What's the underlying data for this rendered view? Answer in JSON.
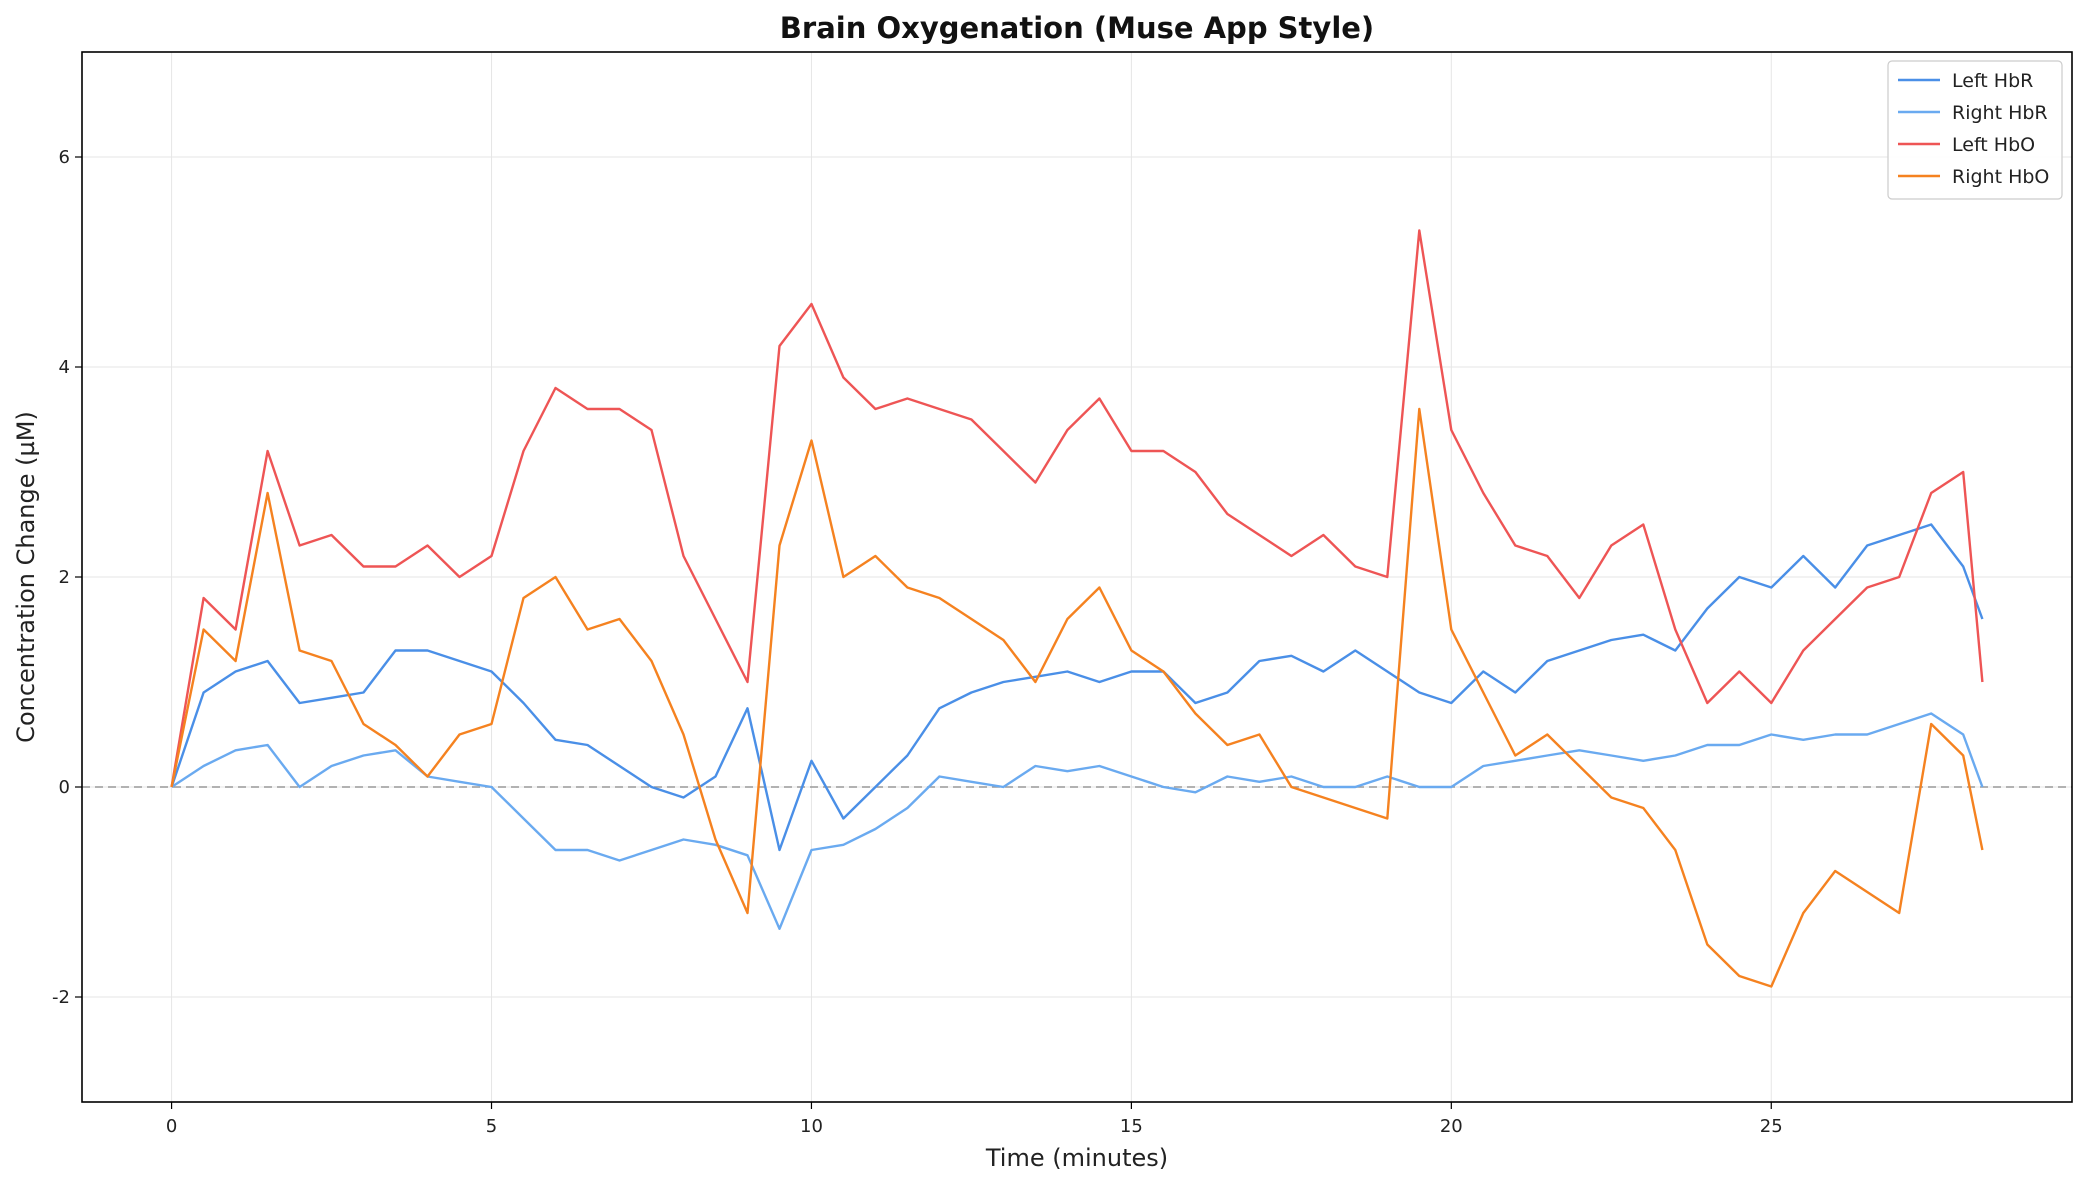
{
  "chart_data": {
    "type": "line",
    "title": "Brain Oxygenation (Muse App Style)",
    "xlabel": "Time (minutes)",
    "ylabel": "Concentration Change (µM)",
    "xlim": [
      -1.4,
      29.7
    ],
    "ylim": [
      -3.0,
      7.0
    ],
    "xticks": [
      0,
      5,
      10,
      15,
      20,
      25
    ],
    "xtick_labels": [
      "0",
      "5",
      "10",
      "15",
      "20",
      "25"
    ],
    "yticks": [
      -2,
      0,
      2,
      4,
      6
    ],
    "ytick_labels": [
      "-2",
      "0",
      "2",
      "4",
      "6"
    ],
    "grid": true,
    "reference_line_y": 0,
    "legend_position": "top-right",
    "series": [
      {
        "name": "Left HbR",
        "color": "#4a8fe7",
        "x": [
          0,
          0.5,
          1,
          1.5,
          2,
          2.5,
          3,
          3.5,
          4,
          4.5,
          5,
          5.5,
          6,
          6.5,
          7,
          7.5,
          8,
          8.5,
          9,
          9.5,
          10,
          10.5,
          11,
          11.5,
          12,
          12.5,
          13,
          13.5,
          14,
          14.5,
          15,
          15.5,
          16,
          16.5,
          17,
          17.5,
          18,
          18.5,
          19,
          19.5,
          20,
          20.5,
          21,
          21.5,
          22,
          22.5,
          23,
          23.5,
          24,
          24.5,
          25,
          25.5,
          26,
          26.5,
          27,
          27.5,
          28,
          28.3
        ],
        "y": [
          0.0,
          0.9,
          1.1,
          1.2,
          0.8,
          0.85,
          0.9,
          1.3,
          1.3,
          1.2,
          1.1,
          0.8,
          0.45,
          0.4,
          0.2,
          0.0,
          -0.1,
          0.1,
          0.75,
          -0.6,
          0.25,
          -0.3,
          0.0,
          0.3,
          0.75,
          0.9,
          1.0,
          1.05,
          1.1,
          1.0,
          1.1,
          1.1,
          0.8,
          0.9,
          1.2,
          1.25,
          1.1,
          1.3,
          1.1,
          0.9,
          0.8,
          1.1,
          0.9,
          1.2,
          1.3,
          1.4,
          1.45,
          1.3,
          1.7,
          2.0,
          1.9,
          2.2,
          1.9,
          2.3,
          2.4,
          2.5,
          2.1,
          1.6
        ]
      },
      {
        "name": "Right HbR",
        "color": "#6aaaf0",
        "x": [
          0,
          0.5,
          1,
          1.5,
          2,
          2.5,
          3,
          3.5,
          4,
          4.5,
          5,
          5.5,
          6,
          6.5,
          7,
          7.5,
          8,
          8.5,
          9,
          9.5,
          10,
          10.5,
          11,
          11.5,
          12,
          12.5,
          13,
          13.5,
          14,
          14.5,
          15,
          15.5,
          16,
          16.5,
          17,
          17.5,
          18,
          18.5,
          19,
          19.5,
          20,
          20.5,
          21,
          21.5,
          22,
          22.5,
          23,
          23.5,
          24,
          24.5,
          25,
          25.5,
          26,
          26.5,
          27,
          27.5,
          28,
          28.3
        ],
        "y": [
          0.0,
          0.2,
          0.35,
          0.4,
          0.0,
          0.2,
          0.3,
          0.35,
          0.1,
          0.05,
          0.0,
          -0.3,
          -0.6,
          -0.6,
          -0.7,
          -0.6,
          -0.5,
          -0.55,
          -0.65,
          -1.35,
          -0.6,
          -0.55,
          -0.4,
          -0.2,
          0.1,
          0.05,
          0.0,
          0.2,
          0.15,
          0.2,
          0.1,
          0.0,
          -0.05,
          0.1,
          0.05,
          0.1,
          0.0,
          0.0,
          0.1,
          0.0,
          0.0,
          0.2,
          0.25,
          0.3,
          0.35,
          0.3,
          0.25,
          0.3,
          0.4,
          0.4,
          0.5,
          0.45,
          0.5,
          0.5,
          0.6,
          0.7,
          0.5,
          0.0
        ]
      },
      {
        "name": "Left HbO",
        "color": "#ee5555",
        "x": [
          0,
          0.5,
          1,
          1.5,
          2,
          2.5,
          3,
          3.5,
          4,
          4.5,
          5,
          5.5,
          6,
          6.5,
          7,
          7.5,
          8,
          8.5,
          9,
          9.5,
          10,
          10.5,
          11,
          11.5,
          12,
          12.5,
          13,
          13.5,
          14,
          14.5,
          15,
          15.5,
          16,
          16.5,
          17,
          17.5,
          18,
          18.5,
          19,
          19.5,
          20,
          20.5,
          21,
          21.5,
          22,
          22.5,
          23,
          23.5,
          24,
          24.5,
          25,
          25.5,
          26,
          26.5,
          27,
          27.5,
          28,
          28.3
        ],
        "y": [
          0.0,
          1.8,
          1.5,
          3.2,
          2.3,
          2.4,
          2.1,
          2.1,
          2.3,
          2.0,
          2.2,
          3.2,
          3.8,
          3.6,
          3.6,
          3.4,
          2.2,
          1.6,
          1.0,
          4.2,
          4.6,
          3.9,
          3.6,
          3.7,
          3.6,
          3.5,
          3.2,
          2.9,
          3.4,
          3.7,
          3.2,
          3.2,
          3.0,
          2.6,
          2.4,
          2.2,
          2.4,
          2.1,
          2.0,
          5.3,
          3.4,
          2.8,
          2.3,
          2.2,
          1.8,
          2.3,
          2.5,
          1.5,
          0.8,
          1.1,
          0.8,
          1.3,
          1.6,
          1.9,
          2.0,
          2.8,
          3.0,
          1.0
        ]
      },
      {
        "name": "Right HbO",
        "color": "#f58220",
        "x": [
          0,
          0.5,
          1,
          1.5,
          2,
          2.5,
          3,
          3.5,
          4,
          4.5,
          5,
          5.5,
          6,
          6.5,
          7,
          7.5,
          8,
          8.5,
          9,
          9.5,
          10,
          10.5,
          11,
          11.5,
          12,
          12.5,
          13,
          13.5,
          14,
          14.5,
          15,
          15.5,
          16,
          16.5,
          17,
          17.5,
          18,
          18.5,
          19,
          19.5,
          20,
          20.5,
          21,
          21.5,
          22,
          22.5,
          23,
          23.5,
          24,
          24.5,
          25,
          25.5,
          26,
          26.5,
          27,
          27.5,
          28,
          28.3
        ],
        "y": [
          0.0,
          1.5,
          1.2,
          2.8,
          1.3,
          1.2,
          0.6,
          0.4,
          0.1,
          0.5,
          0.6,
          1.8,
          2.0,
          1.5,
          1.6,
          1.2,
          0.5,
          -0.5,
          -1.2,
          2.3,
          3.3,
          2.0,
          2.2,
          1.9,
          1.8,
          1.6,
          1.4,
          1.0,
          1.6,
          1.9,
          1.3,
          1.1,
          0.7,
          0.4,
          0.5,
          0.0,
          -0.1,
          -0.2,
          -0.3,
          3.6,
          1.5,
          0.9,
          0.3,
          0.5,
          0.2,
          -0.1,
          -0.2,
          -0.6,
          -1.5,
          -1.8,
          -1.9,
          -1.2,
          -0.8,
          -1.0,
          -1.2,
          0.6,
          0.3,
          -0.6
        ]
      }
    ]
  }
}
